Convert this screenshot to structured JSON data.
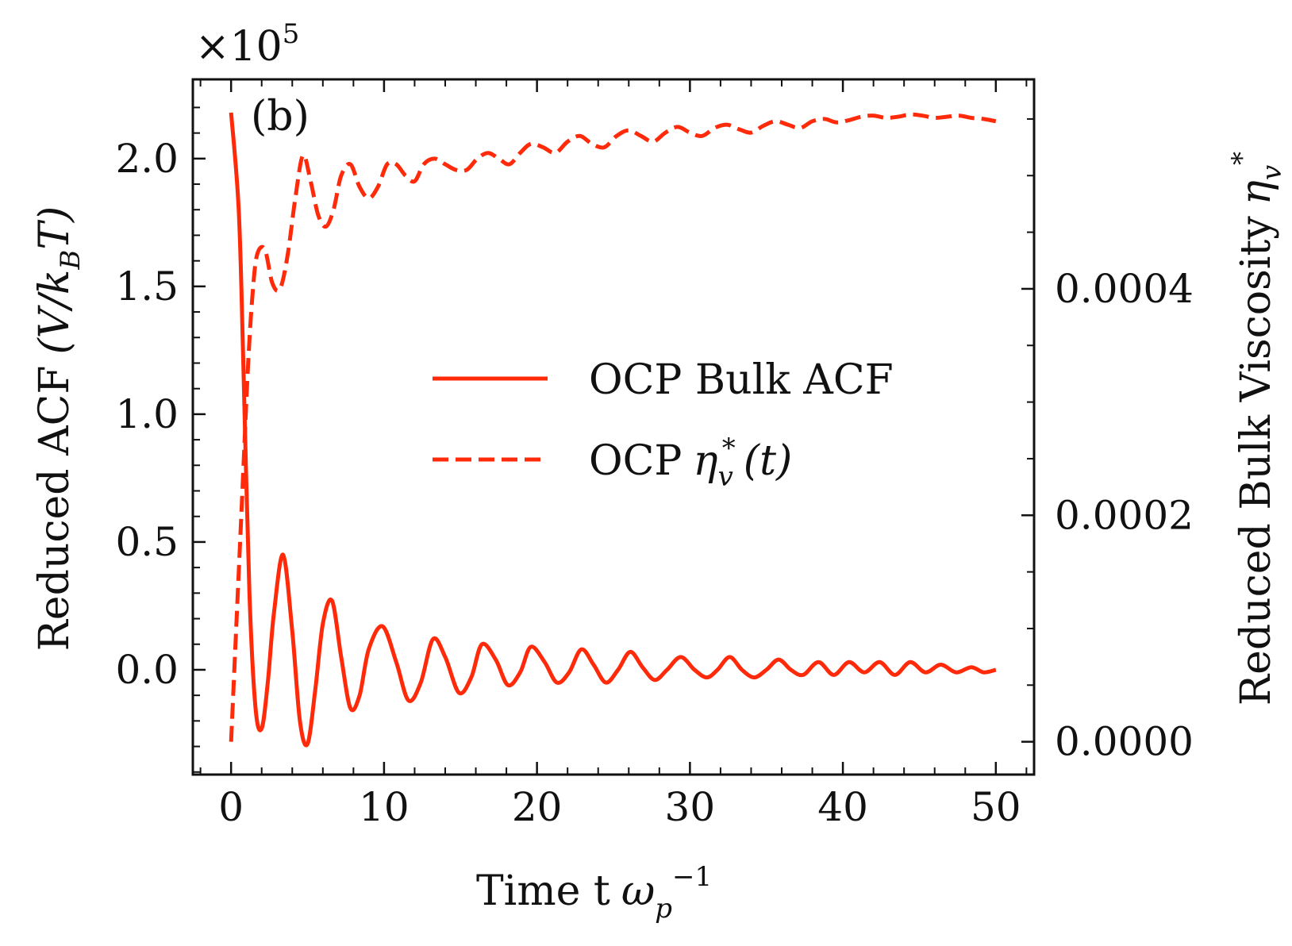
{
  "chart_data": {
    "type": "line",
    "panel_label": "(b)",
    "x_axis": {
      "label_text": "Time t",
      "label_symbol": "ω",
      "label_subscript": "p",
      "label_superscript": "−1",
      "range": [
        -2.5,
        52.5
      ],
      "ticks": [
        0,
        10,
        20,
        30,
        40,
        50
      ],
      "tick_labels": [
        "0",
        "10",
        "20",
        "30",
        "40",
        "50"
      ]
    },
    "y_axis_left": {
      "label_text": "Reduced ACF",
      "label_unit": "(V/k",
      "label_unit_sub": "B",
      "label_unit_end": "T)",
      "offset_prefix": "×10",
      "offset_exponent": "5",
      "range": [
        -0.41,
        2.31
      ],
      "ticks": [
        0.0,
        0.5,
        1.0,
        1.5,
        2.0
      ],
      "tick_labels": [
        "0.0",
        "0.5",
        "1.0",
        "1.5",
        "2.0"
      ]
    },
    "y_axis_right": {
      "label_text": "Reduced Bulk Viscosity",
      "label_symbol": "η",
      "label_subscript": "v",
      "label_superscript": "*",
      "range": [
        -2.9e-05,
        0.000585
      ],
      "ticks": [
        0.0,
        0.0002,
        0.0004
      ],
      "tick_labels": [
        "0.0000",
        "0.0002",
        "0.0004"
      ]
    },
    "legend": {
      "placement": "center-right",
      "entries": [
        {
          "text": "OCP Bulk ACF",
          "style": "solid"
        },
        {
          "text_prefix": "OCP",
          "symbol": "η",
          "subscript": "v",
          "superscript": "*",
          "suffix": "(t)",
          "style": "dashed"
        }
      ]
    },
    "series": [
      {
        "name": "OCP Bulk ACF",
        "axis": "left",
        "style": "solid",
        "color": "#ff2a0a",
        "x": [
          0.0,
          0.5,
          0.8,
          1.2,
          1.6,
          2.0,
          2.4,
          2.8,
          3.4,
          4.0,
          4.5,
          5.0,
          5.5,
          6.0,
          6.6,
          7.2,
          7.8,
          8.4,
          9.0,
          9.9,
          10.8,
          11.6,
          12.4,
          13.2,
          14.0,
          14.9,
          15.7,
          16.4,
          17.3,
          18.1,
          18.9,
          19.6,
          20.5,
          21.3,
          22.1,
          22.9,
          23.7,
          24.5,
          25.3,
          26.1,
          26.9,
          27.7,
          28.5,
          29.4,
          30.3,
          31.1,
          31.8,
          32.6,
          33.4,
          34.2,
          35.0,
          35.8,
          36.6,
          37.4,
          38.4,
          39.4,
          40.4,
          41.4,
          42.4,
          43.4,
          44.4,
          45.4,
          46.4,
          47.4,
          48.4,
          49.2,
          50.0
        ],
        "values": [
          2.18,
          1.8,
          1.2,
          0.3,
          -0.15,
          -0.23,
          -0.05,
          0.22,
          0.45,
          0.15,
          -0.2,
          -0.29,
          -0.08,
          0.18,
          0.27,
          0.05,
          -0.15,
          -0.1,
          0.08,
          0.17,
          0.03,
          -0.12,
          -0.05,
          0.12,
          0.05,
          -0.09,
          -0.03,
          0.1,
          0.04,
          -0.06,
          -0.01,
          0.09,
          0.03,
          -0.05,
          -0.01,
          0.08,
          0.02,
          -0.05,
          0.0,
          0.07,
          0.01,
          -0.04,
          0.0,
          0.05,
          0.0,
          -0.03,
          0.0,
          0.05,
          0.0,
          -0.03,
          0.0,
          0.04,
          0.0,
          -0.02,
          0.03,
          -0.02,
          0.03,
          -0.01,
          0.03,
          -0.02,
          0.03,
          -0.01,
          0.02,
          -0.01,
          0.01,
          -0.01,
          0.0
        ]
      },
      {
        "name": "OCP ηv*(t)",
        "axis": "right",
        "style": "dashed",
        "color": "#ff2a0a",
        "x": [
          0.0,
          0.4,
          0.8,
          1.1,
          1.4,
          1.7,
          2.2,
          2.7,
          3.2,
          3.7,
          4.2,
          4.7,
          5.2,
          5.7,
          6.2,
          6.7,
          7.2,
          7.8,
          8.4,
          9.0,
          9.6,
          10.2,
          10.8,
          11.4,
          12.0,
          12.6,
          13.3,
          14.0,
          14.7,
          15.4,
          16.1,
          16.8,
          17.5,
          18.2,
          18.9,
          19.6,
          20.4,
          21.2,
          22.0,
          22.8,
          23.6,
          24.4,
          25.2,
          26.0,
          26.8,
          27.6,
          28.4,
          29.2,
          30.0,
          30.8,
          31.6,
          32.4,
          33.2,
          34.0,
          34.8,
          35.6,
          36.4,
          37.2,
          38.0,
          38.8,
          39.6,
          40.4,
          41.2,
          42.0,
          42.8,
          43.6,
          44.4,
          45.2,
          46.0,
          46.8,
          47.6,
          48.4,
          49.2,
          50.0
        ],
        "values": [
          0.0,
          0.00012,
          0.00024,
          0.00033,
          0.000395,
          0.00043,
          0.000435,
          0.000405,
          0.0004,
          0.00043,
          0.00048,
          0.000518,
          0.000495,
          0.000465,
          0.000455,
          0.00047,
          0.0005,
          0.00051,
          0.00049,
          0.00048,
          0.00049,
          0.00051,
          0.00051,
          0.0005,
          0.000495,
          0.00051,
          0.000515,
          0.00051,
          0.000505,
          0.000505,
          0.000515,
          0.00052,
          0.000515,
          0.00051,
          0.00052,
          0.000528,
          0.000525,
          0.00052,
          0.00053,
          0.000535,
          0.000528,
          0.000525,
          0.000535,
          0.00054,
          0.000535,
          0.00053,
          0.000538,
          0.000543,
          0.000538,
          0.000535,
          0.000542,
          0.000545,
          0.000541,
          0.000538,
          0.000544,
          0.000548,
          0.000545,
          0.000542,
          0.000548,
          0.00055,
          0.000547,
          0.000549,
          0.000552,
          0.000553,
          0.000551,
          0.000552,
          0.000554,
          0.000553,
          0.000551,
          0.000552,
          0.000553,
          0.000551,
          0.00055,
          0.000548
        ]
      }
    ],
    "grid": false
  }
}
